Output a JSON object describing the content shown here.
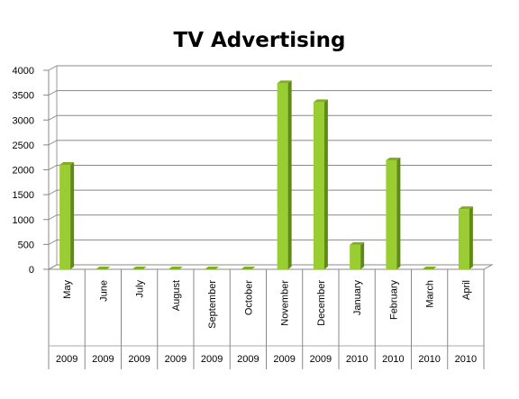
{
  "chart_data": {
    "type": "bar",
    "title": "TV Advertising",
    "xlabel": "",
    "ylabel": "",
    "categories": [
      "May",
      "June",
      "July",
      "August",
      "September",
      "October",
      "November",
      "December",
      "January",
      "February",
      "March",
      "April"
    ],
    "years": [
      "2009",
      "2009",
      "2009",
      "2009",
      "2009",
      "2009",
      "2009",
      "2009",
      "2010",
      "2010",
      "2010",
      "2010"
    ],
    "values": [
      2100,
      0,
      0,
      0,
      0,
      0,
      3740,
      3360,
      490,
      2190,
      0,
      1210
    ],
    "ylim": [
      0,
      4000
    ],
    "yticks": [
      0,
      500,
      1000,
      1500,
      2000,
      2500,
      3000,
      3500,
      4000
    ],
    "grid": true,
    "colors": {
      "bar_front": "#9acd32",
      "bar_side": "#5f8a14",
      "bar_top": "#7fb020"
    }
  }
}
